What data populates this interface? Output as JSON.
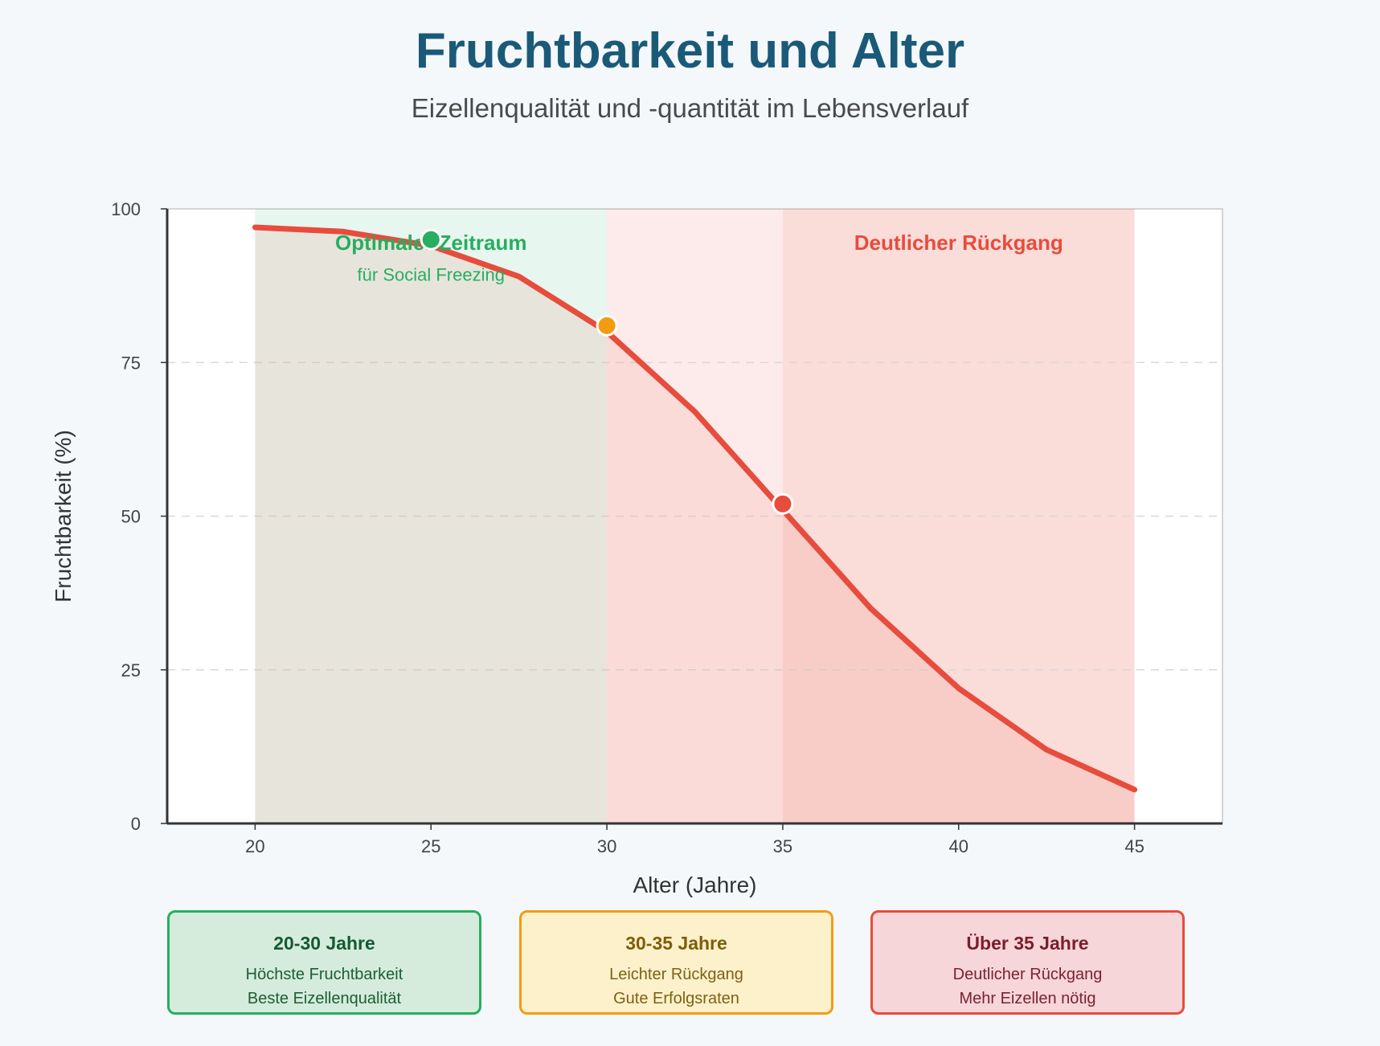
{
  "header": {
    "title": "Fruchtbarkeit und Alter",
    "subtitle": "Eizellenqualität und -quantität im Lebensverlauf"
  },
  "colors": {
    "title": "#1a5a78",
    "curve": "#e74c3c",
    "optimal": "#27ae60",
    "warning": "#f39c12",
    "decline": "#e74c3c"
  },
  "chart_data": {
    "type": "line",
    "xlabel": "Alter (Jahre)",
    "ylabel": "Fruchtbarkeit (%)",
    "xlim": [
      17.5,
      47.5
    ],
    "ylim": [
      0,
      100
    ],
    "x_ticks": [
      20,
      25,
      30,
      35,
      40,
      45
    ],
    "y_ticks": [
      0,
      25,
      50,
      75,
      100
    ],
    "grid": "horizontal dashed",
    "series": [
      {
        "x": [
          20,
          22.5,
          25,
          27.5,
          30,
          32.5,
          35,
          37.5,
          40,
          42.5,
          45
        ],
        "values": [
          97,
          96.3,
          94,
          89,
          80,
          67,
          51,
          35,
          22,
          12,
          5.5
        ]
      }
    ],
    "highlight_points": [
      {
        "x": 25,
        "y": 95,
        "color": "#27ae60"
      },
      {
        "x": 30,
        "y": 81,
        "color": "#f39c12"
      },
      {
        "x": 35,
        "y": 52,
        "color": "#e74c3c"
      }
    ],
    "bands": [
      {
        "from": 20,
        "to": 30,
        "color": "#27ae60"
      },
      {
        "from": 30,
        "to": 45,
        "color": "#e74c3c"
      },
      {
        "from": 35,
        "to": 45,
        "color": "#e74c3c"
      }
    ],
    "annotations": [
      {
        "text": "Optimaler Zeitraum",
        "x": 25,
        "y": 94.5,
        "color": "#27ae60",
        "weight": "bold"
      },
      {
        "text": "für Social Freezing",
        "x": 25,
        "y": 89.5,
        "color": "#27ae60",
        "weight": "normal"
      },
      {
        "text": "Deutlicher Rückgang",
        "x": 40,
        "y": 94.5,
        "color": "#e74c3c",
        "weight": "bold"
      }
    ]
  },
  "legend_boxes": [
    {
      "title": "20-30 Jahre",
      "line1": "Höchste Fruchtbarkeit",
      "line2": "Beste Eizellenqualität"
    },
    {
      "title": "30-35 Jahre",
      "line1": "Leichter Rückgang",
      "line2": "Gute Erfolgsraten"
    },
    {
      "title": "Über 35 Jahre",
      "line1": "Deutlicher Rückgang",
      "line2": "Mehr Eizellen nötig"
    }
  ]
}
